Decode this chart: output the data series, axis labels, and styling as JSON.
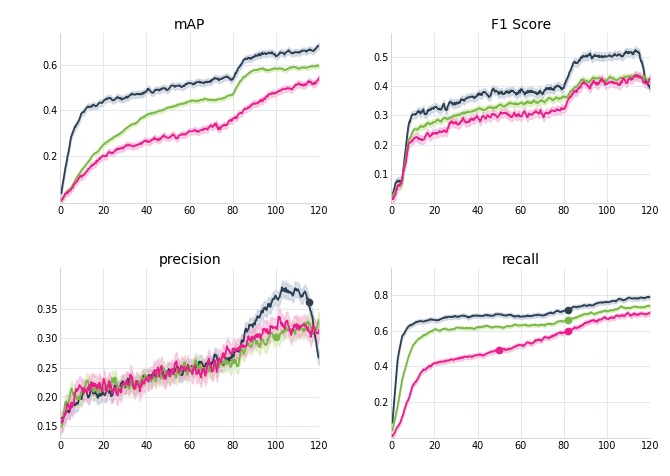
{
  "titles": [
    "mAP",
    "F1 Score",
    "precision",
    "recall"
  ],
  "dark_color": "#2e3f52",
  "green_color": "#7ab648",
  "pink_color": "#e91e8c",
  "shadow_color_dark": "#b0bdd0",
  "shadow_color_pink": "#f5a0cc",
  "shadow_color_green": "#c8e898",
  "background": "#ffffff",
  "grid_color": "#dce4f0",
  "xlim": [
    0,
    120
  ],
  "xticks": [
    0,
    20,
    40,
    60,
    80,
    100,
    120
  ],
  "figsize": [
    6.7,
    4.76
  ],
  "dpi": 100
}
